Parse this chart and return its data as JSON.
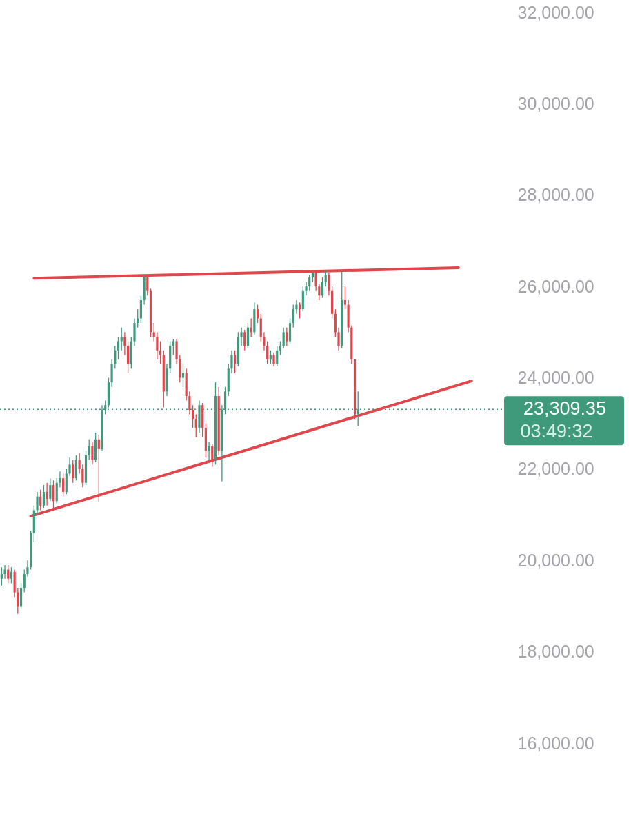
{
  "chart_data": {
    "type": "candlestick",
    "categories": [
      null,
      null,
      null,
      null,
      null,
      null,
      null,
      null,
      null,
      null,
      null,
      null,
      null,
      null,
      null,
      null,
      null,
      null,
      null,
      null,
      null,
      null,
      null,
      null,
      null,
      null,
      null,
      null,
      null,
      null,
      null,
      null,
      null,
      null,
      null,
      null,
      null,
      null,
      null,
      null,
      null,
      null,
      null,
      null,
      null,
      null,
      null,
      null,
      null,
      null,
      null,
      null,
      null,
      null,
      null,
      null,
      null,
      null,
      null,
      null,
      null,
      null,
      null,
      null,
      null,
      null,
      null,
      null,
      null,
      null,
      null,
      null,
      null,
      null,
      null,
      null,
      null,
      null,
      null,
      null,
      null,
      null,
      null,
      null,
      null,
      null,
      null,
      null,
      null,
      null,
      null,
      null,
      null,
      null,
      null,
      null,
      null,
      null,
      null,
      null,
      null,
      null,
      null,
      null,
      null,
      null,
      null,
      null,
      null,
      null,
      null,
      null,
      null,
      null,
      null,
      null,
      null,
      null,
      null,
      null,
      null,
      null,
      null,
      null,
      null,
      null,
      null,
      null,
      null,
      null,
      null,
      null,
      null,
      null,
      null,
      null,
      null,
      null,
      null,
      null,
      null,
      null,
      null,
      null,
      null,
      null,
      null,
      null,
      null,
      null,
      null,
      null,
      null,
      null,
      null,
      null
    ],
    "ohlc": [
      [
        19600,
        19850,
        19450,
        19700
      ],
      [
        19700,
        19900,
        19600,
        19800
      ],
      [
        19800,
        19900,
        19500,
        19600
      ],
      [
        19600,
        19850,
        19500,
        19750
      ],
      [
        19750,
        19800,
        19200,
        19300
      ],
      [
        19300,
        19400,
        18830,
        19000
      ],
      [
        19000,
        19500,
        18950,
        19400
      ],
      [
        19400,
        19800,
        19300,
        19700
      ],
      [
        19700,
        20000,
        19650,
        19850
      ],
      [
        19850,
        20650,
        19800,
        20600
      ],
      [
        20600,
        21200,
        20400,
        21100
      ],
      [
        21100,
        21500,
        21000,
        21400
      ],
      [
        21400,
        21550,
        21100,
        21200
      ],
      [
        21200,
        21650,
        21150,
        21500
      ],
      [
        21500,
        21700,
        21200,
        21350
      ],
      [
        21350,
        21800,
        21300,
        21650
      ],
      [
        21650,
        21750,
        21100,
        21300
      ],
      [
        21300,
        21800,
        21250,
        21700
      ],
      [
        21700,
        21950,
        21600,
        21800
      ],
      [
        21800,
        21900,
        21400,
        21500
      ],
      [
        21500,
        22000,
        21450,
        21900
      ],
      [
        21900,
        22250,
        21850,
        22100
      ],
      [
        22100,
        22200,
        21700,
        21800
      ],
      [
        21800,
        22300,
        21750,
        22200
      ],
      [
        22200,
        22350,
        21900,
        22000
      ],
      [
        22000,
        22100,
        21600,
        21700
      ],
      [
        21700,
        22400,
        21650,
        22300
      ],
      [
        22300,
        22650,
        22200,
        22500
      ],
      [
        22500,
        22600,
        22100,
        22200
      ],
      [
        22200,
        22800,
        22150,
        22650
      ],
      [
        22650,
        22750,
        21275,
        22450
      ],
      [
        22450,
        23400,
        22400,
        23300
      ],
      [
        23300,
        23500,
        23200,
        23400
      ],
      [
        23400,
        24000,
        23350,
        23900
      ],
      [
        23900,
        24400,
        23800,
        24300
      ],
      [
        24300,
        24700,
        24200,
        24600
      ],
      [
        24600,
        24900,
        24400,
        24800
      ],
      [
        24800,
        25100,
        24600,
        24900
      ],
      [
        24900,
        25000,
        24500,
        24700
      ],
      [
        24700,
        24800,
        24100,
        24300
      ],
      [
        24300,
        24900,
        24200,
        24800
      ],
      [
        24800,
        25300,
        24700,
        25200
      ],
      [
        25200,
        25500,
        25100,
        25300
      ],
      [
        25300,
        25800,
        25200,
        25700
      ],
      [
        25700,
        26250,
        25600,
        26200
      ],
      [
        26200,
        26250,
        25800,
        25900
      ],
      [
        25900,
        25950,
        24900,
        25000
      ],
      [
        25000,
        25200,
        24800,
        24900
      ],
      [
        24900,
        25000,
        24400,
        24600
      ],
      [
        24600,
        24800,
        24300,
        24500
      ],
      [
        24500,
        24600,
        23350,
        23700
      ],
      [
        23700,
        24300,
        23600,
        24200
      ],
      [
        24200,
        24800,
        24100,
        24700
      ],
      [
        24700,
        24850,
        24500,
        24800
      ],
      [
        24800,
        24850,
        24300,
        24400
      ],
      [
        24400,
        24500,
        23900,
        24000
      ],
      [
        24000,
        24300,
        23800,
        24100
      ],
      [
        24100,
        24200,
        23500,
        23600
      ],
      [
        23600,
        23700,
        23200,
        23300
      ],
      [
        23300,
        23400,
        22900,
        23100
      ],
      [
        23100,
        23200,
        22700,
        22900
      ],
      [
        22900,
        23500,
        22800,
        23400
      ],
      [
        23400,
        23450,
        22700,
        22900
      ],
      [
        22900,
        23000,
        22250,
        22400
      ],
      [
        22400,
        22600,
        22200,
        22500
      ],
      [
        22500,
        22550,
        22050,
        22200
      ],
      [
        22200,
        23900,
        22100,
        23600
      ],
      [
        23600,
        23800,
        22300,
        22400
      ],
      [
        22400,
        23400,
        21730,
        23300
      ],
      [
        23300,
        23800,
        23200,
        23700
      ],
      [
        23700,
        24300,
        23600,
        24200
      ],
      [
        24200,
        24600,
        24100,
        24500
      ],
      [
        24500,
        24600,
        24100,
        24300
      ],
      [
        24300,
        25000,
        24250,
        24900
      ],
      [
        24900,
        25100,
        24700,
        25000
      ],
      [
        25000,
        25050,
        24600,
        24700
      ],
      [
        24700,
        25200,
        24650,
        25100
      ],
      [
        25100,
        25300,
        24900,
        25000
      ],
      [
        25000,
        25650,
        24950,
        25500
      ],
      [
        25500,
        25600,
        25200,
        25300
      ],
      [
        25300,
        25400,
        24800,
        24900
      ],
      [
        24900,
        25000,
        24600,
        24700
      ],
      [
        24700,
        24800,
        24300,
        24400
      ],
      [
        24400,
        24600,
        24300,
        24500
      ],
      [
        24500,
        24550,
        24250,
        24300
      ],
      [
        24300,
        24700,
        24250,
        24600
      ],
      [
        24600,
        24800,
        24500,
        24700
      ],
      [
        24700,
        25100,
        24650,
        25000
      ],
      [
        25000,
        25100,
        24700,
        24800
      ],
      [
        24800,
        25300,
        24750,
        25200
      ],
      [
        25200,
        25600,
        25100,
        25500
      ],
      [
        25500,
        25700,
        25400,
        25600
      ],
      [
        25600,
        25650,
        25300,
        25500
      ],
      [
        25500,
        26000,
        25450,
        25900
      ],
      [
        25900,
        26100,
        25800,
        26000
      ],
      [
        26000,
        26250,
        25900,
        26200
      ],
      [
        26200,
        26350,
        26100,
        26300
      ],
      [
        26300,
        26350,
        25900,
        26000
      ],
      [
        26000,
        26050,
        25700,
        25800
      ],
      [
        25800,
        26200,
        25750,
        26100
      ],
      [
        26100,
        26350,
        26000,
        26250
      ],
      [
        26250,
        26300,
        25800,
        25900
      ],
      [
        25900,
        26000,
        25300,
        25400
      ],
      [
        25400,
        25500,
        24900,
        25000
      ],
      [
        25000,
        25100,
        24600,
        24700
      ],
      [
        24700,
        26350,
        24650,
        25700
      ],
      [
        25700,
        26000,
        25500,
        25600
      ],
      [
        25600,
        25700,
        25000,
        25100
      ],
      [
        25100,
        25150,
        24300,
        24400
      ],
      [
        24400,
        24400,
        23100,
        23200
      ],
      [
        23200,
        23700,
        22950,
        23309.35
      ],
      null,
      null,
      null,
      null,
      null,
      null,
      null,
      null,
      null,
      null,
      null,
      null,
      null,
      null,
      null,
      null,
      null,
      null,
      null,
      null,
      null,
      null,
      null,
      null,
      null,
      null,
      null,
      null,
      null,
      null,
      null,
      null,
      null,
      null,
      null,
      null,
      null,
      null,
      null,
      null,
      null,
      null,
      null,
      null,
      null
    ],
    "colors": [
      "#3f9a7b",
      "#3f9a7b",
      "#e0474c",
      "#3f9a7b",
      "#e0474c",
      "#e0474c",
      "#3f9a7b",
      "#3f9a7b",
      "#3f9a7b",
      "#3f9a7b",
      "#3f9a7b",
      "#3f9a7b",
      "#e0474c",
      "#3f9a7b",
      "#e0474c",
      "#3f9a7b",
      "#e0474c",
      "#3f9a7b",
      "#3f9a7b",
      "#e0474c",
      "#3f9a7b",
      "#3f9a7b",
      "#e0474c",
      "#3f9a7b",
      "#e0474c",
      "#e0474c",
      "#3f9a7b",
      "#3f9a7b",
      "#e0474c",
      "#3f9a7b",
      "#e0474c",
      "#3f9a7b",
      "#3f9a7b",
      "#3f9a7b",
      "#3f9a7b",
      "#3f9a7b",
      "#3f9a7b",
      "#3f9a7b",
      "#e0474c",
      "#e0474c",
      "#3f9a7b",
      "#3f9a7b",
      "#3f9a7b",
      "#3f9a7b",
      "#3f9a7b",
      "#e0474c",
      "#e0474c",
      "#e0474c",
      "#e0474c",
      "#e0474c",
      "#e0474c",
      "#3f9a7b",
      "#3f9a7b",
      "#3f9a7b",
      "#e0474c",
      "#e0474c",
      "#3f9a7b",
      "#e0474c",
      "#e0474c",
      "#e0474c",
      "#e0474c",
      "#3f9a7b",
      "#e0474c",
      "#e0474c",
      "#3f9a7b",
      "#e0474c",
      "#3f9a7b",
      "#e0474c",
      "#3f9a7b",
      "#3f9a7b",
      "#3f9a7b",
      "#3f9a7b",
      "#e0474c",
      "#3f9a7b",
      "#3f9a7b",
      "#e0474c",
      "#3f9a7b",
      "#e0474c",
      "#3f9a7b",
      "#e0474c",
      "#e0474c",
      "#e0474c",
      "#e0474c",
      "#3f9a7b",
      "#e0474c",
      "#3f9a7b",
      "#3f9a7b",
      "#3f9a7b",
      "#e0474c",
      "#3f9a7b",
      "#3f9a7b",
      "#3f9a7b",
      "#e0474c",
      "#3f9a7b",
      "#3f9a7b",
      "#3f9a7b",
      "#3f9a7b",
      "#e0474c",
      "#e0474c",
      "#3f9a7b",
      "#3f9a7b",
      "#e0474c",
      "#e0474c",
      "#e0474c",
      "#e0474c",
      "#3f9a7b",
      "#e0474c",
      "#e0474c",
      "#e0474c",
      "#e0474c",
      "#3f9a7b",
      null,
      null,
      null,
      null,
      null,
      null,
      null,
      null,
      null,
      null,
      null,
      null,
      null,
      null,
      null,
      null,
      null,
      null,
      null,
      null,
      null,
      null,
      null,
      null,
      null,
      null,
      null,
      null,
      null,
      null,
      null,
      null,
      null,
      null,
      null,
      null,
      null,
      null,
      null,
      null,
      null,
      null,
      null,
      null,
      null
    ],
    "series": [
      {
        "type": "line",
        "color": "#e0474c",
        "values": [
          null,
          null,
          null,
          null,
          null,
          null,
          null,
          null,
          null,
          null,
          26180,
          null,
          null,
          null,
          null,
          null,
          null,
          null,
          null,
          null,
          null,
          null,
          null,
          null,
          null,
          null,
          null,
          null,
          null,
          null,
          null,
          null,
          null,
          null,
          null,
          null,
          null,
          null,
          null,
          null,
          null,
          null,
          null,
          null,
          null,
          null,
          null,
          null,
          null,
          null,
          null,
          null,
          null,
          null,
          null,
          null,
          null,
          null,
          null,
          null,
          null,
          null,
          null,
          null,
          null,
          null,
          null,
          null,
          null,
          null,
          null,
          null,
          null,
          null,
          null,
          null,
          null,
          null,
          null,
          null,
          null,
          null,
          null,
          null,
          null,
          null,
          null,
          null,
          null,
          null,
          null,
          null,
          null,
          null,
          null,
          null,
          null,
          null,
          null,
          null,
          null,
          null,
          null,
          null,
          null,
          null,
          null,
          null,
          null,
          null,
          null,
          null,
          null,
          null,
          null,
          null,
          null,
          null,
          null,
          null,
          null,
          null,
          null,
          null,
          null,
          null,
          null,
          null,
          null,
          null,
          null,
          null,
          null,
          null,
          null,
          null,
          null,
          null,
          null,
          null,
          null,
          26410,
          null,
          null,
          null,
          null,
          null,
          null,
          null,
          null,
          null,
          null,
          null,
          null,
          null,
          null
        ]
      },
      {
        "type": "line",
        "color": "#e0474c",
        "values": [
          null,
          null,
          null,
          null,
          null,
          null,
          null,
          null,
          null,
          20970,
          null,
          null,
          null,
          null,
          null,
          null,
          null,
          null,
          null,
          null,
          null,
          null,
          null,
          null,
          null,
          null,
          null,
          null,
          null,
          null,
          null,
          null,
          null,
          null,
          null,
          null,
          null,
          null,
          null,
          null,
          null,
          null,
          null,
          null,
          null,
          null,
          null,
          null,
          null,
          null,
          null,
          null,
          null,
          null,
          null,
          null,
          null,
          null,
          null,
          null,
          null,
          null,
          null,
          null,
          null,
          null,
          null,
          null,
          null,
          null,
          null,
          null,
          null,
          null,
          null,
          null,
          null,
          null,
          null,
          null,
          null,
          null,
          null,
          null,
          null,
          null,
          null,
          null,
          null,
          null,
          null,
          null,
          null,
          null,
          null,
          null,
          null,
          null,
          null,
          null,
          null,
          null,
          null,
          null,
          null,
          null,
          null,
          null,
          null,
          null,
          null,
          null,
          null,
          null,
          null,
          null,
          null,
          null,
          null,
          null,
          null,
          null,
          null,
          null,
          null,
          null,
          null,
          null,
          null,
          null,
          null,
          null,
          null,
          null,
          null,
          null,
          null,
          null,
          null,
          null,
          null,
          null,
          null,
          null,
          null,
          23930,
          null,
          null,
          null,
          null,
          null,
          null,
          null,
          null,
          null,
          null
        ]
      }
    ],
    "ref_lines": [
      {
        "axis": "y",
        "value": 23309.35,
        "label": "23,309.35",
        "color": "#3f9a7b",
        "line_style": "dotted"
      }
    ],
    "annotations": [
      "03:49:32"
    ],
    "ylim": [
      14142,
      32272
    ],
    "yticks": [
      {
        "value": 16000,
        "label": "16,000.00"
      },
      {
        "value": 18000,
        "label": "18,000.00"
      },
      {
        "value": 20000,
        "label": "20,000.00"
      },
      {
        "value": 22000,
        "label": "22,000.00"
      },
      {
        "value": 24000,
        "label": "24,000.00"
      },
      {
        "value": 26000,
        "label": "26,000.00"
      },
      {
        "value": 28000,
        "label": "28,000.00"
      },
      {
        "value": 30000,
        "label": "30,000.00"
      },
      {
        "value": 32000,
        "label": "32,000.00"
      }
    ],
    "tick_labels": "y"
  }
}
